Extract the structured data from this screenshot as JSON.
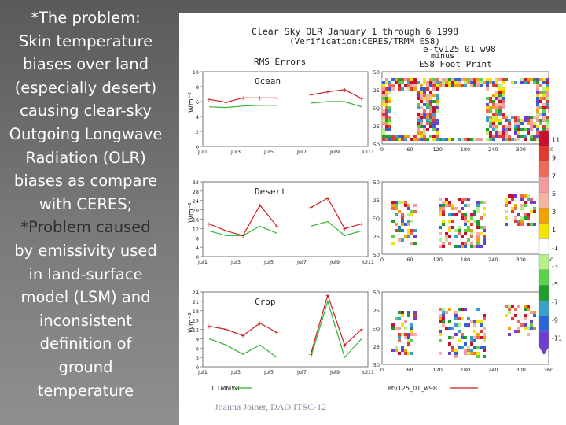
{
  "slide": {
    "left_lines": [
      "*The problem:",
      "Skin temperature",
      "biases over land",
      "(especially desert)",
      "causing clear-sky",
      "Outgoing Longwave",
      "Radiation (OLR)",
      "biases as compare",
      "with CERES;",
      "*Problem caused",
      "by emissivity used",
      "in land-surface",
      "model (LSM) and",
      "inconsistent",
      "definition of",
      "ground",
      "temperature"
    ],
    "footer": "Joanna Joiner, DAO ITSC-12"
  },
  "figure": {
    "title_line1": "Clear Sky OLR January 1 through 6 1998",
    "title_line2": "(Verification:CERES/TRMM ES8)",
    "title_line3": "e-tv125_01_w98",
    "title_line4": "minus",
    "title_line5": "ES8 Foot Print",
    "rms_label": "RMS Errors",
    "panels": [
      {
        "label": "Ocean",
        "ymax": 10,
        "yticks": [
          "10",
          "8",
          "6",
          "4",
          "2",
          "0"
        ],
        "red": [
          6.3,
          5.9,
          6.5,
          6.5,
          6.5,
          null,
          6.9,
          7.3,
          7.6,
          6.4
        ],
        "green": [
          5.3,
          5.2,
          5.4,
          5.5,
          5.5,
          null,
          5.8,
          6.0,
          6.0,
          5.3
        ]
      },
      {
        "label": "Desert",
        "ymax": 32,
        "yticks": [
          "32",
          "28",
          "24",
          "20",
          "16",
          "12",
          "8",
          "4",
          "0"
        ],
        "red": [
          14,
          11,
          9,
          22,
          13,
          null,
          21,
          25,
          12,
          14
        ],
        "green": [
          11,
          9,
          9,
          13,
          10,
          null,
          13,
          15,
          9,
          11
        ]
      },
      {
        "label": "Crop",
        "ymax": 24,
        "yticks": [
          "24",
          "21",
          "18",
          "15",
          "12",
          "9",
          "6",
          "3",
          "0"
        ],
        "red": [
          13,
          12,
          10,
          14,
          11,
          null,
          4,
          23,
          7,
          12
        ],
        "green": [
          9,
          7,
          4,
          7,
          3,
          null,
          3,
          21,
          3,
          9
        ]
      }
    ],
    "x_ticks": [
      "Jul1",
      "Jul3",
      "Jul5",
      "Jul7",
      "Jul9",
      "Jul11"
    ],
    "units": "Wm⁻²",
    "map_lat_ticks": [
      "50",
      "25",
      "EQ",
      "25",
      "50"
    ],
    "map_lon_ticks": [
      "0",
      "60",
      "120",
      "180",
      "240",
      "300",
      "360"
    ],
    "legend_tmmwi": "1 TMMWI",
    "legend_series": "etv125_01_w98",
    "colorbar_labels": [
      "11",
      "9",
      "7",
      "5",
      "3",
      "1",
      "-1",
      "-3",
      "-5",
      "-7",
      "-9",
      "-11"
    ],
    "colorbar_colors": [
      "#c8102e",
      "#e03a2e",
      "#f06a5a",
      "#f39aa0",
      "#f5b3a5",
      "#f2a300",
      "#f6e400",
      "#ffffff",
      "#b6f08c",
      "#5ad24a",
      "#1f9e2c",
      "#3aa0c8",
      "#2d66d6",
      "#6c3fd0"
    ]
  }
}
